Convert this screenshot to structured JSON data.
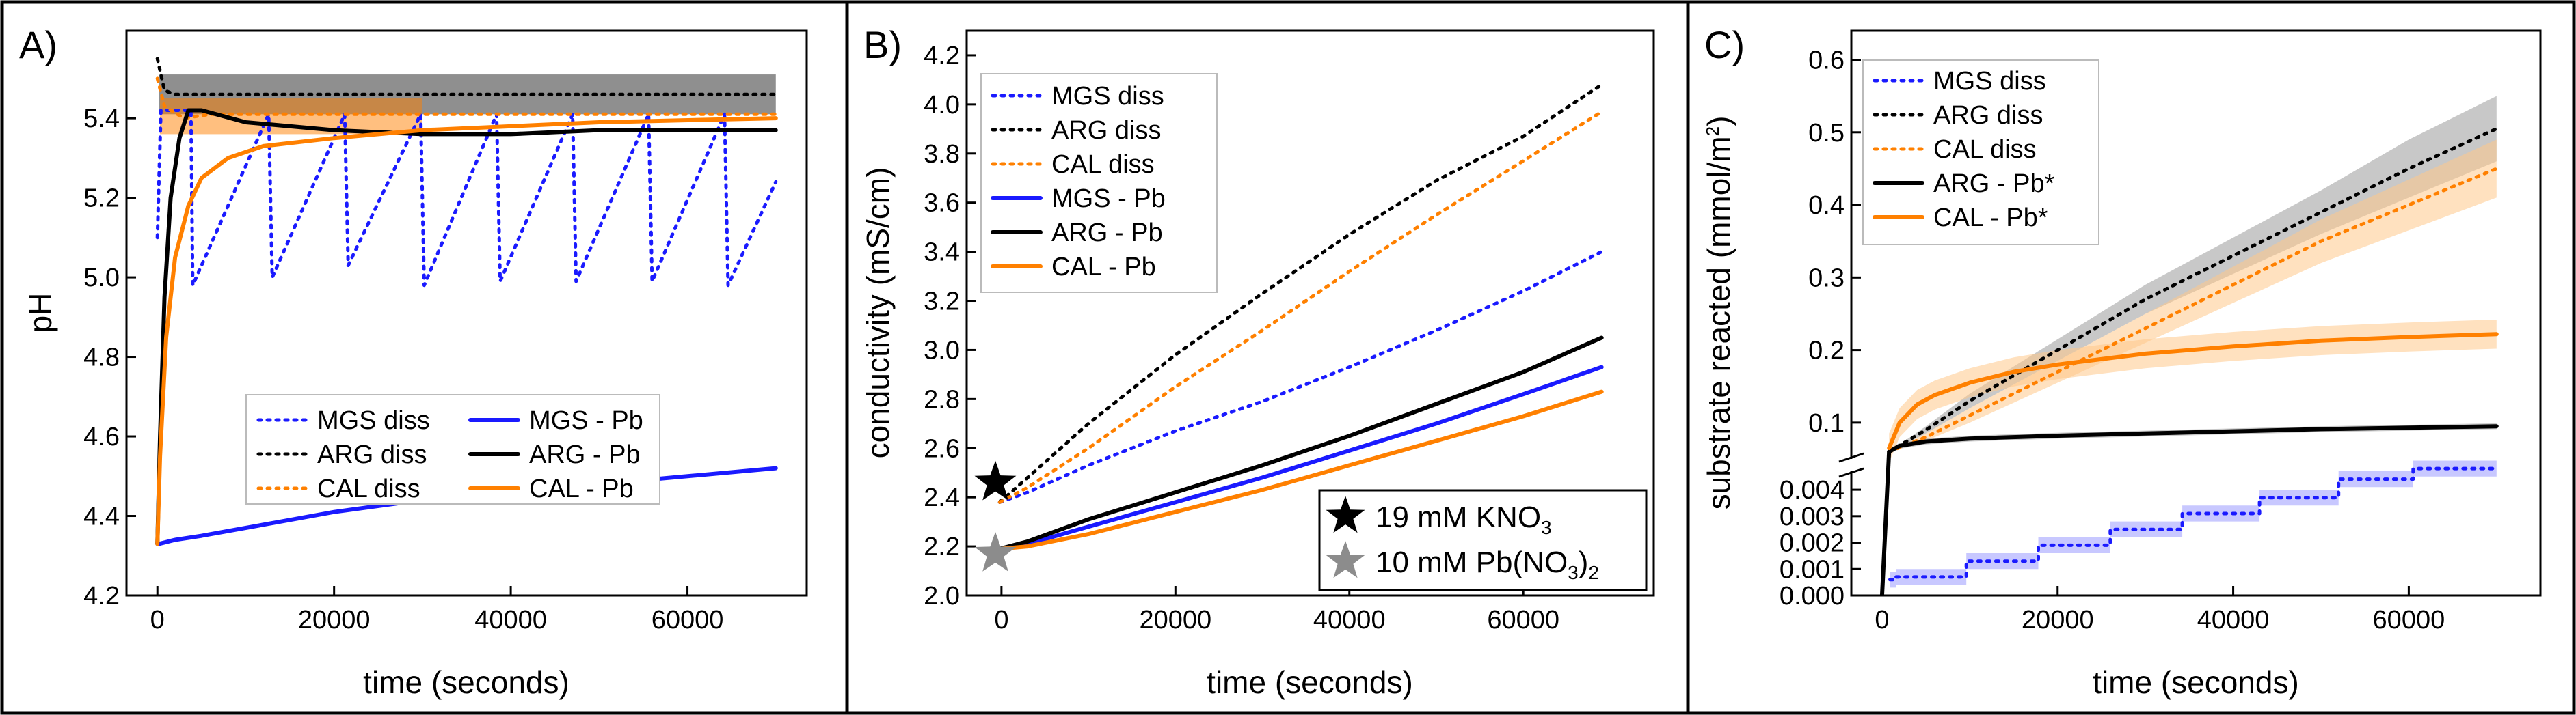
{
  "panel_labels": [
    "A)",
    "B)",
    "C)"
  ],
  "colors": {
    "MGS": "#1a1aff",
    "ARG": "#000000",
    "CAL": "#ff8000",
    "ARG_band": "#9a9a9a",
    "CAL_band": "#ffc88a",
    "MGS_band": "#9a9aff",
    "star_black": "#000000",
    "star_gray": "#8c8c8c"
  },
  "chart_data": [
    {
      "type": "line",
      "panel": "A)",
      "xlabel": "time (seconds)",
      "ylabel": "pH",
      "xlim": [
        -3500,
        73500
      ],
      "ylim": [
        4.2,
        5.62
      ],
      "xticks": [
        0,
        20000,
        40000,
        60000
      ],
      "xtick_labels": [
        "0",
        "20000",
        "40000",
        "60000"
      ],
      "yticks": [
        4.2,
        4.4,
        4.6,
        4.8,
        5.0,
        5.2,
        5.4
      ],
      "ytick_labels": [
        "4.2",
        "4.4",
        "4.6",
        "4.8",
        "5.0",
        "5.2",
        "5.4"
      ],
      "legend": [
        "MGS diss",
        "ARG diss",
        "CAL diss",
        "MGS - Pb",
        "ARG - Pb",
        "CAL - Pb"
      ],
      "legend_position": "lower-center",
      "series": [
        {
          "name": "MGS diss",
          "style": "dotted",
          "color_key": "MGS",
          "x": [
            0,
            400,
            3800,
            4000,
            12600,
            13000,
            21200,
            21600,
            29800,
            30200,
            38400,
            38800,
            47000,
            47400,
            55600,
            56000,
            64200,
            64600,
            70000
          ],
          "y": [
            5.1,
            5.42,
            5.42,
            4.98,
            5.41,
            5.0,
            5.41,
            5.03,
            5.41,
            4.98,
            5.41,
            4.99,
            5.41,
            4.99,
            5.41,
            4.99,
            5.41,
            4.98,
            5.24
          ]
        },
        {
          "name": "ARG diss",
          "style": "dotted",
          "color_key": "ARG",
          "x": [
            0,
            800,
            2000,
            5000,
            20000,
            40000,
            60000,
            70000
          ],
          "y": [
            5.55,
            5.47,
            5.46,
            5.46,
            5.46,
            5.46,
            5.46,
            5.46
          ]
        },
        {
          "name": "CAL diss",
          "style": "dotted",
          "color_key": "CAL",
          "x": [
            0,
            800,
            3000,
            6000,
            15000,
            30000,
            50000,
            70000
          ],
          "y": [
            5.5,
            5.43,
            5.4,
            5.41,
            5.41,
            5.41,
            5.41,
            5.41
          ]
        },
        {
          "name": "MGS - Pb",
          "style": "solid",
          "color_key": "MGS",
          "x": [
            0,
            200,
            2000,
            5000,
            10000,
            20000,
            30000,
            40000,
            50000,
            60000,
            70000
          ],
          "y": [
            4.33,
            4.33,
            4.34,
            4.35,
            4.37,
            4.41,
            4.44,
            4.46,
            4.48,
            4.5,
            4.52
          ],
          "markers": false
        },
        {
          "name": "ARG - Pb",
          "style": "solid",
          "color_key": "ARG",
          "x": [
            0,
            300,
            800,
            1500,
            2500,
            3500,
            5000,
            10000,
            20000,
            30000,
            40000,
            50000,
            60000,
            70000
          ],
          "y": [
            4.33,
            4.6,
            4.95,
            5.2,
            5.35,
            5.42,
            5.42,
            5.39,
            5.37,
            5.36,
            5.36,
            5.37,
            5.37,
            5.37
          ]
        },
        {
          "name": "CAL - Pb",
          "style": "solid",
          "color_key": "CAL",
          "x": [
            0,
            300,
            1000,
            2000,
            3500,
            5000,
            8000,
            12000,
            20000,
            30000,
            50000,
            70000
          ],
          "y": [
            4.33,
            4.55,
            4.85,
            5.05,
            5.18,
            5.25,
            5.3,
            5.33,
            5.35,
            5.37,
            5.39,
            5.4
          ]
        }
      ]
    },
    {
      "type": "line",
      "panel": "B)",
      "xlabel": "time (seconds)",
      "ylabel": "conductivity (mS/cm)",
      "xlim": [
        -4000,
        75000
      ],
      "ylim": [
        2.0,
        4.3
      ],
      "xticks": [
        0,
        20000,
        40000,
        60000
      ],
      "xtick_labels": [
        "0",
        "20000",
        "40000",
        "60000"
      ],
      "yticks": [
        2.0,
        2.2,
        2.4,
        2.6,
        2.8,
        3.0,
        3.2,
        3.4,
        3.6,
        3.8,
        4.0,
        4.2
      ],
      "ytick_labels": [
        "2.0",
        "2.2",
        "2.4",
        "2.6",
        "2.8",
        "3.0",
        "3.2",
        "3.4",
        "3.6",
        "3.8",
        "4.0",
        "4.2"
      ],
      "legend": [
        "MGS diss",
        "ARG diss",
        "CAL diss",
        "MGS - Pb",
        "ARG - Pb",
        "CAL - Pb"
      ],
      "legend_position": "top-left",
      "series": [
        {
          "name": "MGS diss",
          "style": "dotted",
          "color_key": "MGS",
          "x": [
            -200,
            3000,
            10000,
            20000,
            30000,
            40000,
            50000,
            60000,
            69000
          ],
          "y": [
            2.38,
            2.42,
            2.53,
            2.67,
            2.79,
            2.93,
            3.08,
            3.24,
            3.4
          ]
        },
        {
          "name": "ARG diss",
          "style": "dotted",
          "color_key": "ARG",
          "x": [
            -200,
            3000,
            10000,
            20000,
            30000,
            40000,
            50000,
            60000,
            69000
          ],
          "y": [
            2.38,
            2.48,
            2.7,
            2.98,
            3.23,
            3.47,
            3.69,
            3.87,
            4.08
          ]
        },
        {
          "name": "CAL diss",
          "style": "dotted",
          "color_key": "CAL",
          "x": [
            -200,
            3000,
            10000,
            20000,
            30000,
            40000,
            50000,
            60000,
            69000
          ],
          "y": [
            2.38,
            2.44,
            2.6,
            2.85,
            3.08,
            3.32,
            3.55,
            3.77,
            3.97
          ]
        },
        {
          "name": "MGS - Pb",
          "style": "solid",
          "color_key": "MGS",
          "x": [
            -200,
            3000,
            10000,
            20000,
            30000,
            40000,
            50000,
            60000,
            69000
          ],
          "y": [
            2.19,
            2.21,
            2.28,
            2.38,
            2.48,
            2.59,
            2.7,
            2.82,
            2.93
          ]
        },
        {
          "name": "ARG - Pb",
          "style": "solid",
          "color_key": "ARG",
          "x": [
            -200,
            3000,
            10000,
            20000,
            30000,
            40000,
            50000,
            60000,
            69000
          ],
          "y": [
            2.19,
            2.22,
            2.31,
            2.42,
            2.53,
            2.65,
            2.78,
            2.91,
            3.05
          ]
        },
        {
          "name": "CAL - Pb",
          "style": "solid",
          "color_key": "CAL",
          "x": [
            -200,
            3000,
            10000,
            20000,
            30000,
            40000,
            50000,
            60000,
            69000
          ],
          "y": [
            2.19,
            2.2,
            2.25,
            2.34,
            2.43,
            2.53,
            2.63,
            2.73,
            2.83
          ]
        }
      ],
      "markers": [
        {
          "label_main": "19 mM KNO",
          "label_sub": "3",
          "label_tail": "",
          "x": -700,
          "y": 2.46,
          "color_key": "star_black"
        },
        {
          "label_main": "10 mM Pb(NO",
          "label_sub": "3",
          "label_tail": ")",
          "label_sub2": "2",
          "x": -700,
          "y": 2.17,
          "color_key": "star_gray"
        }
      ]
    },
    {
      "type": "line",
      "panel": "C)",
      "xlabel": "time (seconds)",
      "ylabel": "substrate reacted (mmol/m",
      "ylabel_sup": "2",
      "ylabel_tail": ")",
      "xlim": [
        -3500,
        75000
      ],
      "xticks": [
        0,
        20000,
        40000,
        60000
      ],
      "xtick_labels": [
        "0",
        "20000",
        "40000",
        "60000"
      ],
      "broken_axis": true,
      "upper_ylim": [
        0.05,
        0.64
      ],
      "upper_yticks": [
        0.1,
        0.2,
        0.3,
        0.4,
        0.5,
        0.6
      ],
      "upper_ytick_labels": [
        "0.1",
        "0.2",
        "0.3",
        "0.4",
        "0.5",
        "0.6"
      ],
      "lower_ylim": [
        0,
        0.0047
      ],
      "lower_yticks": [
        0,
        0.001,
        0.002,
        0.003,
        0.004
      ],
      "lower_ytick_labels": [
        "0.000",
        "0.001",
        "0.002",
        "0.003",
        "0.004"
      ],
      "legend": [
        "MGS diss",
        "ARG diss",
        "CAL diss",
        "ARG - Pb*",
        "CAL - Pb*"
      ],
      "legend_position": "top-left",
      "series": [
        {
          "name": "MGS diss",
          "style": "dotted",
          "color_key": "MGS",
          "segment": "lower",
          "x": [
            900,
            1600,
            1600,
            9600,
            9600,
            17800,
            17800,
            26000,
            26000,
            34200,
            34200,
            43000,
            43000,
            52000,
            52000,
            60500,
            60500,
            70000
          ],
          "y": [
            0.0006,
            0.0006,
            0.0007,
            0.0007,
            0.0013,
            0.0013,
            0.0019,
            0.0019,
            0.0025,
            0.0025,
            0.0031,
            0.0031,
            0.0037,
            0.0037,
            0.0044,
            0.0044,
            0.0048,
            0.0048
          ],
          "band": 0.0003
        },
        {
          "name": "ARG diss",
          "style": "dotted",
          "color_key": "ARG",
          "segment": "upper",
          "x": [
            800,
            5000,
            10000,
            20000,
            30000,
            40000,
            50000,
            60000,
            70000
          ],
          "y": [
            0.06,
            0.09,
            0.13,
            0.2,
            0.27,
            0.33,
            0.39,
            0.45,
            0.505
          ],
          "band_lo": [
            0.06,
            0.085,
            0.12,
            0.185,
            0.25,
            0.305,
            0.36,
            0.41,
            0.46
          ],
          "band_hi": [
            0.06,
            0.095,
            0.14,
            0.215,
            0.29,
            0.355,
            0.42,
            0.49,
            0.55
          ]
        },
        {
          "name": "CAL diss",
          "style": "dotted",
          "color_key": "CAL",
          "segment": "upper",
          "x": [
            800,
            5000,
            10000,
            20000,
            30000,
            40000,
            50000,
            60000,
            70000
          ],
          "y": [
            0.06,
            0.08,
            0.11,
            0.17,
            0.23,
            0.29,
            0.35,
            0.4,
            0.45
          ],
          "band_lo": [
            0.06,
            0.075,
            0.1,
            0.155,
            0.21,
            0.265,
            0.32,
            0.365,
            0.41
          ],
          "band_hi": [
            0.06,
            0.085,
            0.12,
            0.185,
            0.25,
            0.315,
            0.38,
            0.435,
            0.49
          ]
        },
        {
          "name": "ARG - Pb*",
          "style": "solid",
          "color_key": "ARG",
          "segment": "upper",
          "x": [
            800,
            2000,
            5000,
            10000,
            20000,
            30000,
            40000,
            50000,
            60000,
            70000
          ],
          "y": [
            0.06,
            0.068,
            0.074,
            0.078,
            0.082,
            0.085,
            0.088,
            0.091,
            0.093,
            0.095
          ],
          "band": 0.004
        },
        {
          "name": "CAL - Pb*",
          "style": "solid",
          "color_key": "CAL",
          "segment": "upper",
          "x": [
            800,
            2000,
            4000,
            6000,
            10000,
            15000,
            20000,
            30000,
            40000,
            50000,
            60000,
            70000
          ],
          "y": [
            0.065,
            0.1,
            0.125,
            0.138,
            0.155,
            0.17,
            0.18,
            0.195,
            0.205,
            0.213,
            0.218,
            0.222
          ],
          "band": 0.02
        },
        {
          "name": "Pb jump",
          "style": "solid",
          "color_key": "ARG",
          "segment": "jump",
          "x": [
            0,
            800
          ],
          "y": [
            0,
            0.06
          ],
          "legend": false
        }
      ]
    }
  ]
}
